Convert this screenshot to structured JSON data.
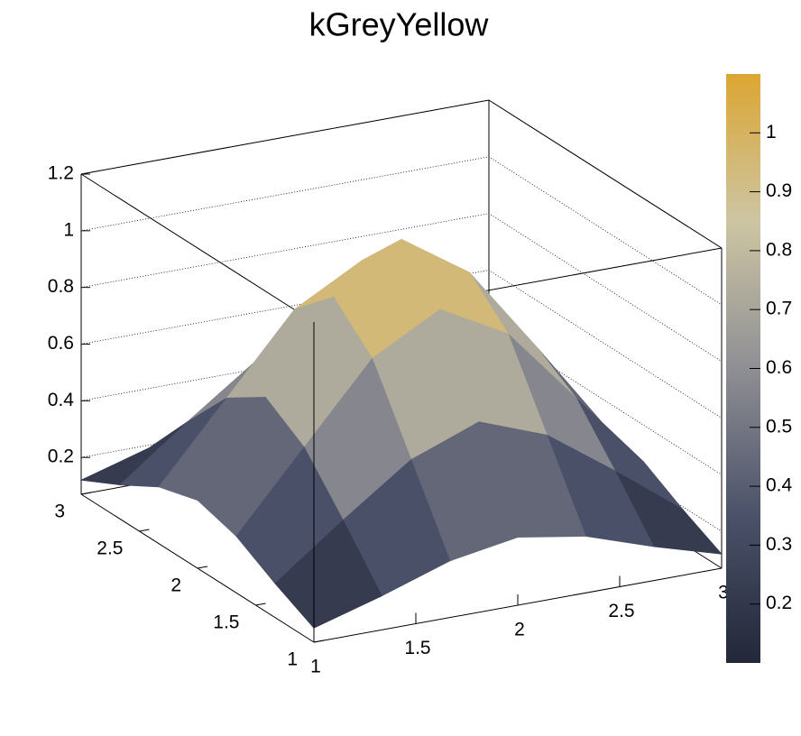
{
  "chart_data": {
    "type": "surface",
    "title": "kGreyYellow",
    "x": [
      1,
      1.333,
      1.667,
      2,
      2.333,
      2.667,
      3
    ],
    "y": [
      1,
      1.333,
      1.667,
      2,
      2.333,
      2.667,
      3
    ],
    "z": [
      [
        0.12,
        0.19,
        0.27,
        0.31,
        0.27,
        0.19,
        0.12
      ],
      [
        0.19,
        0.37,
        0.54,
        0.63,
        0.54,
        0.37,
        0.19
      ],
      [
        0.27,
        0.54,
        0.81,
        0.94,
        0.81,
        0.54,
        0.27
      ],
      [
        0.31,
        0.63,
        0.94,
        1.1,
        0.94,
        0.63,
        0.31
      ],
      [
        0.27,
        0.54,
        0.81,
        0.94,
        0.81,
        0.54,
        0.27
      ],
      [
        0.19,
        0.37,
        0.54,
        0.63,
        0.54,
        0.37,
        0.19
      ],
      [
        0.12,
        0.19,
        0.27,
        0.31,
        0.27,
        0.19,
        0.12
      ]
    ],
    "xlim": [
      1,
      3
    ],
    "ylim": [
      1,
      3
    ],
    "zlim": [
      0.07,
      1.2
    ],
    "xticks": [
      1,
      1.5,
      2,
      2.5,
      3
    ],
    "yticks": [
      1,
      1.5,
      2,
      2.5,
      3
    ],
    "zticks": [
      0.2,
      0.4,
      0.6,
      0.8,
      1,
      1.2
    ],
    "clim": [
      0.1,
      1.1
    ],
    "cticks": [
      0.2,
      0.3,
      0.4,
      0.5,
      0.6,
      0.7,
      0.8,
      0.9,
      1
    ],
    "palette": [
      "#232839",
      "#4b5169",
      "#8f8f94",
      "#cdc5a3",
      "#dca632"
    ],
    "grid": true
  }
}
